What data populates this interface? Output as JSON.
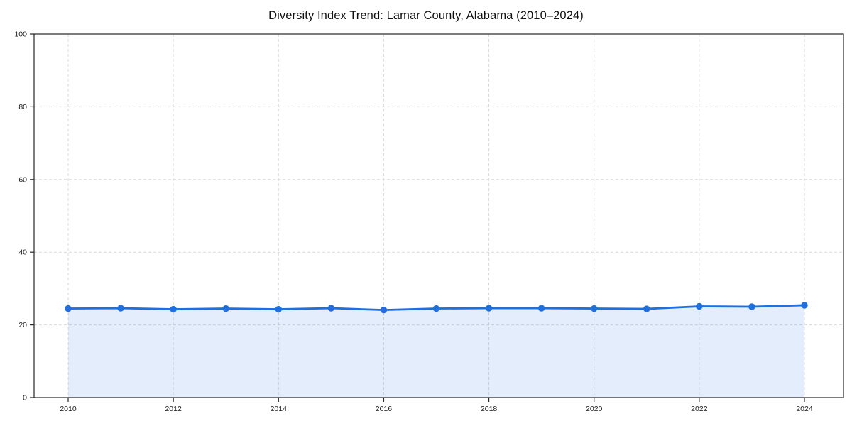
{
  "chart_data": {
    "type": "line",
    "title": "Diversity Index Trend: Lamar County, Alabama (2010–2024)",
    "x": [
      2010,
      2011,
      2012,
      2013,
      2014,
      2015,
      2016,
      2017,
      2018,
      2019,
      2020,
      2021,
      2022,
      2023,
      2024
    ],
    "series": [
      {
        "name": "Diversity Index",
        "values": [
          24.5,
          24.6,
          24.3,
          24.5,
          24.3,
          24.6,
          24.1,
          24.5,
          24.6,
          24.6,
          24.5,
          24.4,
          25.1,
          25.0,
          25.4
        ]
      }
    ],
    "xlabel": "",
    "ylabel": "",
    "xlim": [
      2009.35,
      2024.75
    ],
    "ylim": [
      0,
      100
    ],
    "yticks": [
      0,
      20,
      40,
      60,
      80,
      100
    ],
    "xticks": [
      2010,
      2012,
      2014,
      2016,
      2018,
      2020,
      2022,
      2024
    ],
    "grid": true,
    "grid_style": "dashed",
    "legend_position": "none",
    "line_color": "#1e6fe0",
    "marker_color": "#1e6fe0",
    "fill_color": "rgba(30, 111, 224, 0.12)",
    "grid_color": "#dadada",
    "spine_color": "#262626",
    "background_color": "#ffffff",
    "marker": "circle",
    "area_fill": true
  }
}
